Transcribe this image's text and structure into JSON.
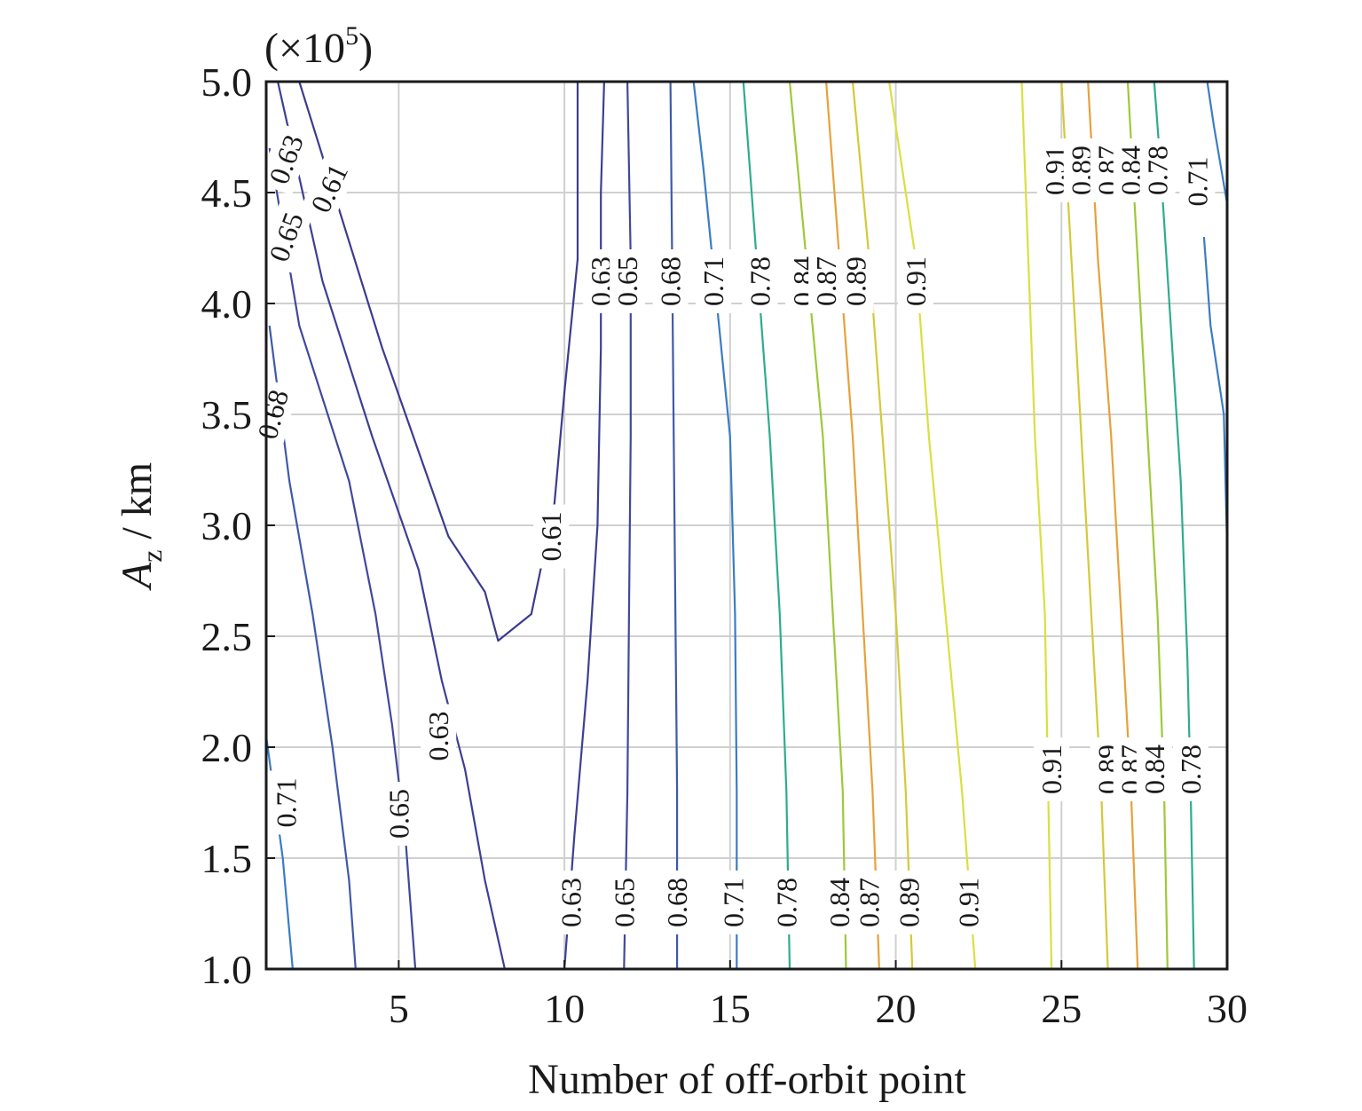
{
  "chart_data": {
    "type": "contour",
    "xlabel": "Number of off-orbit point",
    "ylabel_base": "A",
    "ylabel_sub": "z",
    "ylabel_rest": " / km",
    "y_multiplier_prefix": "(×10",
    "y_multiplier_exp": "5",
    "y_multiplier_suffix": ")",
    "xlim": [
      1,
      30
    ],
    "ylim": [
      1.0,
      5.0
    ],
    "x_ticks": [
      5,
      10,
      15,
      20,
      25,
      30
    ],
    "x_tick_labels": [
      "5",
      "10",
      "15",
      "20",
      "25",
      "30"
    ],
    "y_ticks": [
      1.0,
      1.5,
      2.0,
      2.5,
      3.0,
      3.5,
      4.0,
      4.5,
      5.0
    ],
    "y_tick_labels": [
      "1.0",
      "1.5",
      "2.0",
      "2.5",
      "3.0",
      "3.5",
      "4.0",
      "4.5",
      "5.0"
    ],
    "grid": true,
    "contours": [
      {
        "level": 0.61,
        "color": "#3d3b8e",
        "points": [
          [
            2.0,
            5.0
          ],
          [
            4.5,
            3.8
          ],
          [
            6.5,
            2.95
          ],
          [
            7.6,
            2.7
          ],
          [
            8.0,
            2.48
          ],
          [
            9.0,
            2.6
          ],
          [
            9.7,
            3.1
          ],
          [
            10.0,
            3.6
          ],
          [
            10.4,
            4.2
          ],
          [
            10.4,
            5.0
          ]
        ]
      },
      {
        "level": 0.63,
        "color": "#3e3f94",
        "points": [
          [
            1.35,
            5.0
          ],
          [
            2.7,
            4.1
          ],
          [
            4.2,
            3.4
          ],
          [
            5.6,
            2.8
          ],
          [
            6.3,
            2.3
          ],
          [
            7.0,
            1.9
          ],
          [
            7.6,
            1.4
          ],
          [
            8.2,
            1.0
          ]
        ]
      },
      {
        "level": 0.63,
        "color": "#3e3f94",
        "points": [
          [
            10.0,
            1.0
          ],
          [
            10.3,
            1.6
          ],
          [
            10.7,
            2.3
          ],
          [
            11.0,
            3.0
          ],
          [
            11.1,
            3.8
          ],
          [
            11.1,
            4.5
          ],
          [
            11.2,
            5.0
          ]
        ]
      },
      {
        "level": 0.65,
        "color": "#41489c",
        "points": [
          [
            1.1,
            4.7
          ],
          [
            2.0,
            3.9
          ],
          [
            3.5,
            3.2
          ],
          [
            4.3,
            2.6
          ],
          [
            4.8,
            2.1
          ],
          [
            5.2,
            1.6
          ],
          [
            5.5,
            1.0
          ]
        ]
      },
      {
        "level": 0.65,
        "color": "#41489c",
        "points": [
          [
            11.8,
            1.0
          ],
          [
            11.9,
            1.8
          ],
          [
            11.95,
            2.6
          ],
          [
            12.0,
            3.4
          ],
          [
            12.0,
            4.2
          ],
          [
            11.9,
            5.0
          ]
        ]
      },
      {
        "level": 0.68,
        "color": "#3e5aa8",
        "points": [
          [
            1.1,
            3.9
          ],
          [
            1.7,
            3.2
          ],
          [
            2.4,
            2.6
          ],
          [
            3.0,
            2.0
          ],
          [
            3.5,
            1.4
          ],
          [
            3.7,
            1.0
          ]
        ]
      },
      {
        "level": 0.68,
        "color": "#3e5aa8",
        "points": [
          [
            13.4,
            1.0
          ],
          [
            13.4,
            1.8
          ],
          [
            13.35,
            2.6
          ],
          [
            13.3,
            3.4
          ],
          [
            13.25,
            4.2
          ],
          [
            13.2,
            5.0
          ]
        ]
      },
      {
        "level": 0.71,
        "color": "#3b7cc4",
        "points": [
          [
            1.0,
            2.05
          ],
          [
            1.5,
            1.5
          ],
          [
            1.8,
            1.0
          ]
        ]
      },
      {
        "level": 0.71,
        "color": "#3b7cc4",
        "points": [
          [
            15.2,
            1.0
          ],
          [
            15.2,
            1.8
          ],
          [
            15.15,
            2.6
          ],
          [
            15.0,
            3.4
          ],
          [
            14.6,
            4.0
          ],
          [
            14.2,
            4.6
          ],
          [
            13.9,
            5.0
          ]
        ]
      },
      {
        "level": 0.71,
        "color": "#3b7cc4",
        "points": [
          [
            30.0,
            4.45
          ],
          [
            29.6,
            4.8
          ],
          [
            29.4,
            5.0
          ]
        ]
      },
      {
        "level": 0.71,
        "color": "#3b7cc4",
        "points": [
          [
            30.0,
            2.9
          ],
          [
            29.9,
            3.5
          ],
          [
            29.5,
            3.9
          ],
          [
            29.3,
            4.3
          ]
        ]
      },
      {
        "level": 0.78,
        "color": "#2eac8d",
        "points": [
          [
            16.8,
            1.0
          ],
          [
            16.7,
            1.8
          ],
          [
            16.5,
            2.6
          ],
          [
            16.2,
            3.4
          ],
          [
            15.8,
            4.2
          ],
          [
            15.4,
            5.0
          ]
        ]
      },
      {
        "level": 0.78,
        "color": "#2eac8d",
        "points": [
          [
            29.0,
            1.0
          ],
          [
            28.9,
            1.8
          ],
          [
            28.8,
            2.4
          ],
          [
            28.6,
            3.2
          ],
          [
            28.3,
            3.9
          ],
          [
            28.0,
            4.6
          ],
          [
            27.8,
            5.0
          ]
        ]
      },
      {
        "level": 0.84,
        "color": "#9fc839",
        "points": [
          [
            18.5,
            1.0
          ],
          [
            18.4,
            1.8
          ],
          [
            18.1,
            2.6
          ],
          [
            17.8,
            3.4
          ],
          [
            17.3,
            4.2
          ],
          [
            16.8,
            5.0
          ]
        ]
      },
      {
        "level": 0.84,
        "color": "#9fc839",
        "points": [
          [
            28.2,
            1.0
          ],
          [
            28.1,
            1.8
          ],
          [
            27.9,
            2.6
          ],
          [
            27.6,
            3.4
          ],
          [
            27.3,
            4.2
          ],
          [
            27.0,
            5.0
          ]
        ]
      },
      {
        "level": 0.87,
        "color": "#e6a13a",
        "points": [
          [
            19.5,
            1.0
          ],
          [
            19.3,
            1.8
          ],
          [
            19.0,
            2.6
          ],
          [
            18.7,
            3.4
          ],
          [
            18.3,
            4.2
          ],
          [
            17.9,
            5.0
          ]
        ]
      },
      {
        "level": 0.87,
        "color": "#e6a13a",
        "points": [
          [
            27.3,
            1.0
          ],
          [
            27.1,
            1.8
          ],
          [
            26.8,
            2.6
          ],
          [
            26.5,
            3.4
          ],
          [
            26.1,
            4.2
          ],
          [
            25.8,
            5.0
          ]
        ]
      },
      {
        "level": 0.89,
        "color": "#d4c93a",
        "points": [
          [
            20.5,
            1.0
          ],
          [
            20.3,
            1.8
          ],
          [
            20.0,
            2.6
          ],
          [
            19.6,
            3.4
          ],
          [
            19.2,
            4.2
          ],
          [
            18.7,
            5.0
          ]
        ]
      },
      {
        "level": 0.89,
        "color": "#d4c93a",
        "points": [
          [
            26.4,
            1.0
          ],
          [
            26.2,
            1.8
          ],
          [
            25.9,
            2.6
          ],
          [
            25.6,
            3.4
          ],
          [
            25.3,
            4.2
          ],
          [
            25.0,
            5.0
          ]
        ]
      },
      {
        "level": 0.91,
        "color": "#d8e040",
        "points": [
          [
            22.4,
            1.0
          ],
          [
            22.0,
            1.8
          ],
          [
            21.5,
            2.6
          ],
          [
            21.0,
            3.4
          ],
          [
            20.6,
            4.2
          ],
          [
            19.8,
            5.0
          ]
        ]
      },
      {
        "level": 0.91,
        "color": "#d8e040",
        "points": [
          [
            24.7,
            1.0
          ],
          [
            24.6,
            1.8
          ],
          [
            24.5,
            2.6
          ],
          [
            24.2,
            3.4
          ],
          [
            24.0,
            4.2
          ],
          [
            23.8,
            5.0
          ]
        ]
      }
    ],
    "contour_labels": [
      {
        "text": "0.61",
        "x": 2.9,
        "y": 4.52,
        "angle": -65
      },
      {
        "text": "0.63",
        "x": 1.6,
        "y": 4.65,
        "angle": -70
      },
      {
        "text": "0.65",
        "x": 1.6,
        "y": 4.3,
        "angle": -70
      },
      {
        "text": "0.68",
        "x": 1.2,
        "y": 3.5,
        "angle": -75
      },
      {
        "text": "0.71",
        "x": 1.6,
        "y": 1.75,
        "angle": -90
      },
      {
        "text": "0.65",
        "x": 5.0,
        "y": 1.7,
        "angle": -90
      },
      {
        "text": "0.63",
        "x": 6.2,
        "y": 2.05,
        "angle": -90
      },
      {
        "text": "0.61",
        "x": 9.6,
        "y": 2.95,
        "angle": -90
      },
      {
        "text": "0.63",
        "x": 11.1,
        "y": 4.1,
        "angle": -90
      },
      {
        "text": "0.65",
        "x": 11.9,
        "y": 4.1,
        "angle": -90
      },
      {
        "text": "0.68",
        "x": 13.2,
        "y": 4.1,
        "angle": -90
      },
      {
        "text": "0.71",
        "x": 14.5,
        "y": 4.1,
        "angle": -90
      },
      {
        "text": "0.78",
        "x": 15.9,
        "y": 4.1,
        "angle": -90
      },
      {
        "text": "0.84",
        "x": 17.2,
        "y": 4.1,
        "angle": -90
      },
      {
        "text": "0.87",
        "x": 17.9,
        "y": 4.1,
        "angle": -90
      },
      {
        "text": "0.89",
        "x": 18.8,
        "y": 4.1,
        "angle": -90
      },
      {
        "text": "0.91",
        "x": 20.6,
        "y": 4.1,
        "angle": -90
      },
      {
        "text": "0.63",
        "x": 10.2,
        "y": 1.3,
        "angle": -90
      },
      {
        "text": "0.65",
        "x": 11.8,
        "y": 1.3,
        "angle": -90
      },
      {
        "text": "0.68",
        "x": 13.4,
        "y": 1.3,
        "angle": -90
      },
      {
        "text": "0.71",
        "x": 15.1,
        "y": 1.3,
        "angle": -90
      },
      {
        "text": "0.78",
        "x": 16.7,
        "y": 1.3,
        "angle": -90
      },
      {
        "text": "0.84",
        "x": 18.3,
        "y": 1.3,
        "angle": -90
      },
      {
        "text": "0.87",
        "x": 19.2,
        "y": 1.3,
        "angle": -90
      },
      {
        "text": "0.89",
        "x": 20.4,
        "y": 1.3,
        "angle": -90
      },
      {
        "text": "0.91",
        "x": 22.2,
        "y": 1.3,
        "angle": -90
      },
      {
        "text": "0.91",
        "x": 24.8,
        "y": 4.6,
        "angle": -90
      },
      {
        "text": "0.89",
        "x": 25.6,
        "y": 4.6,
        "angle": -90
      },
      {
        "text": "0.87",
        "x": 26.4,
        "y": 4.6,
        "angle": -90
      },
      {
        "text": "0.84",
        "x": 27.1,
        "y": 4.6,
        "angle": -90
      },
      {
        "text": "0.78",
        "x": 27.9,
        "y": 4.6,
        "angle": -90
      },
      {
        "text": "0.71",
        "x": 29.1,
        "y": 4.55,
        "angle": -90
      },
      {
        "text": "0.91",
        "x": 24.7,
        "y": 1.9,
        "angle": -90
      },
      {
        "text": "0.89",
        "x": 26.4,
        "y": 1.9,
        "angle": -90
      },
      {
        "text": "0.87",
        "x": 27.1,
        "y": 1.9,
        "angle": -90
      },
      {
        "text": "0.84",
        "x": 27.8,
        "y": 1.9,
        "angle": -90
      },
      {
        "text": "0.78",
        "x": 28.9,
        "y": 1.9,
        "angle": -90
      }
    ]
  }
}
